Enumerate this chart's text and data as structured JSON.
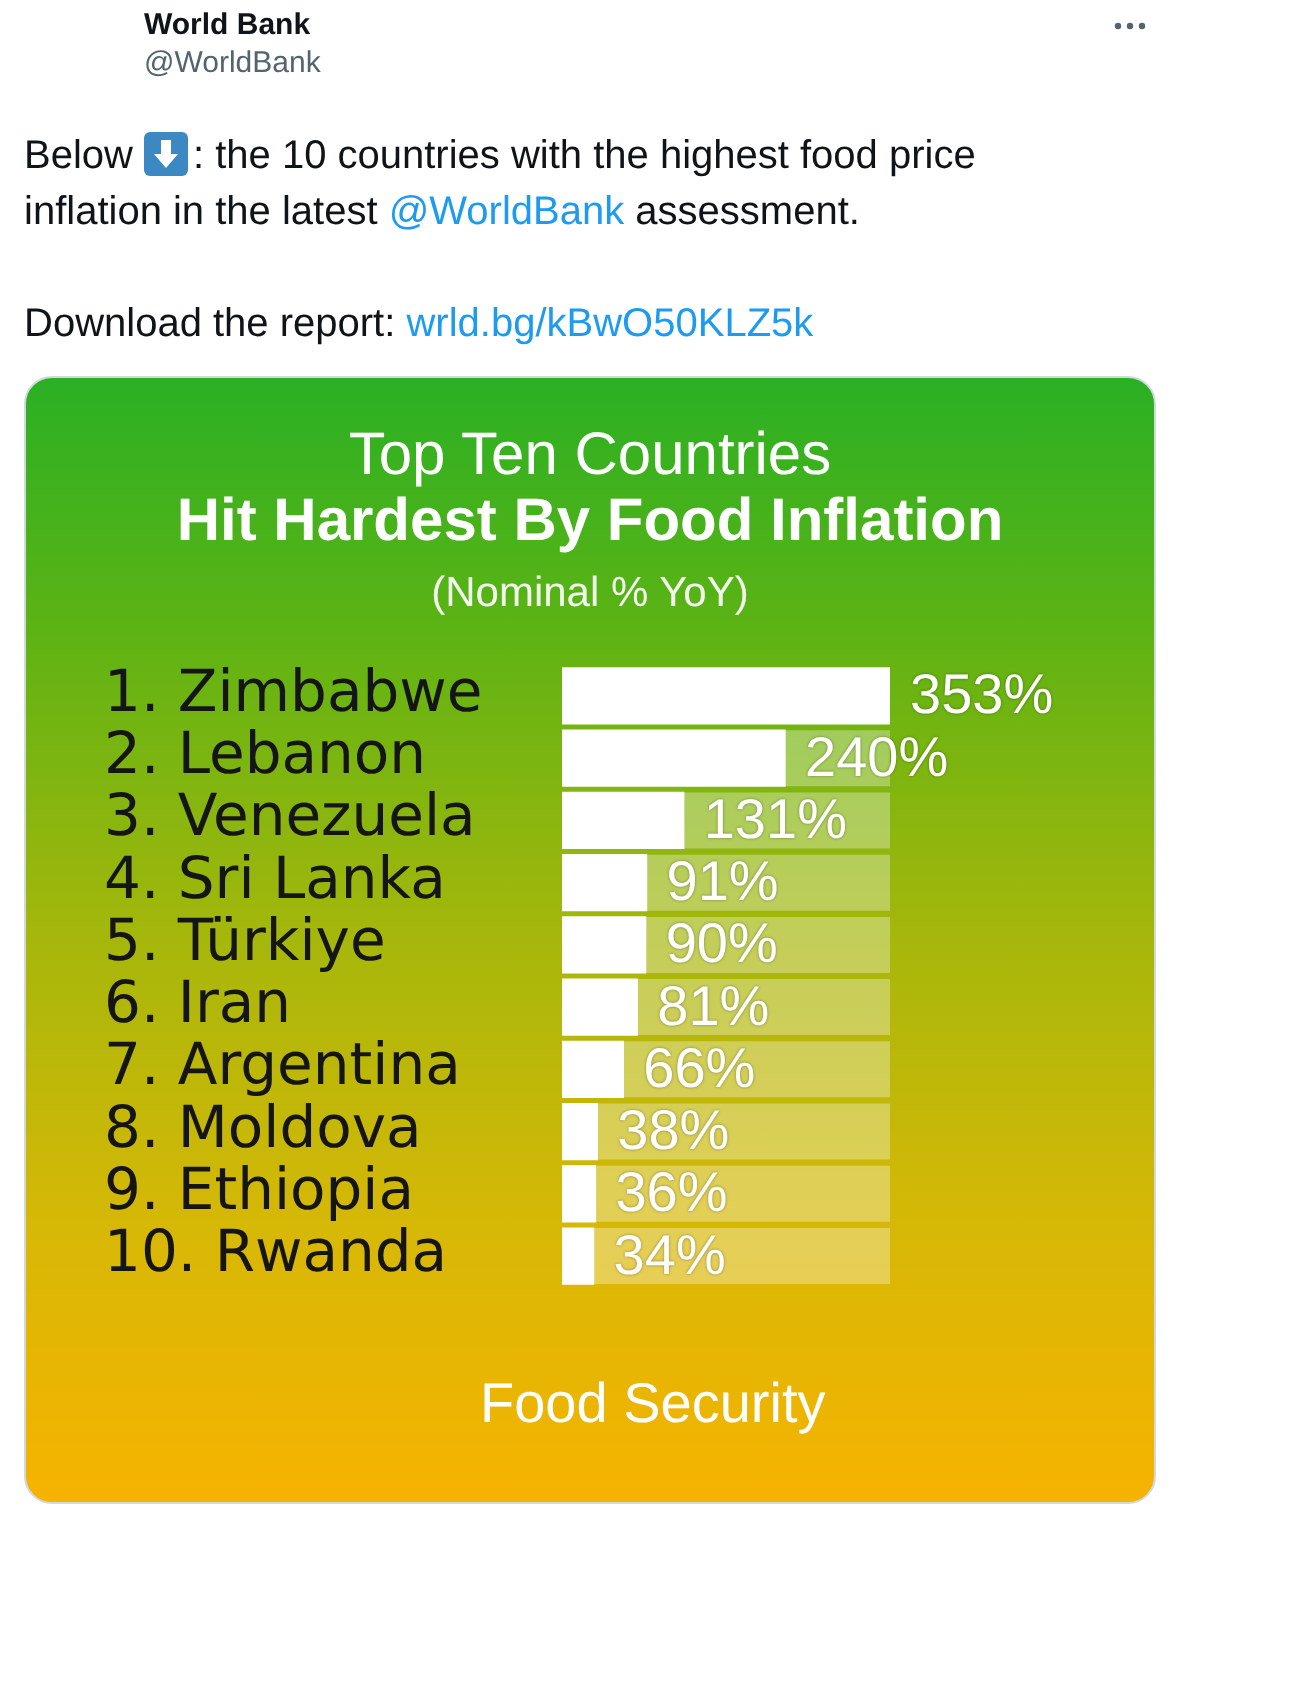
{
  "chart_data": {
    "type": "bar",
    "orientation": "horizontal",
    "title": "Top Ten Countries\nHit Hardest By Food Inflation",
    "subtitle": "(Nominal % YoY)",
    "categories": [
      "1. Zimbabwe",
      "2. Lebanon",
      "3. Venezuela",
      "4. Sri Lanka",
      "5. Türkiye",
      "6. Iran",
      "7. Argentina",
      "8. Moldova",
      "9. Ethiopia",
      "10. Rwanda"
    ],
    "values": [
      353,
      240,
      131,
      91,
      90,
      81,
      66,
      38,
      36,
      34
    ],
    "value_labels": [
      "353%",
      "240%",
      "131%",
      "91%",
      "90%",
      "81%",
      "66%",
      "38%",
      "36%",
      "34%"
    ],
    "color": "#ffffff",
    "xlim": [
      0,
      353
    ],
    "tick_labels": "y",
    "annotations": [
      "World Bank",
      "@WorldBank",
      "Below",
      ": the 10 countries with the highest food price",
      "inflation in the latest @WorldBank assessment.",
      "Download the report: wrld.bg/kBwO50KLZ5k",
      "Food Security"
    ]
  }
}
